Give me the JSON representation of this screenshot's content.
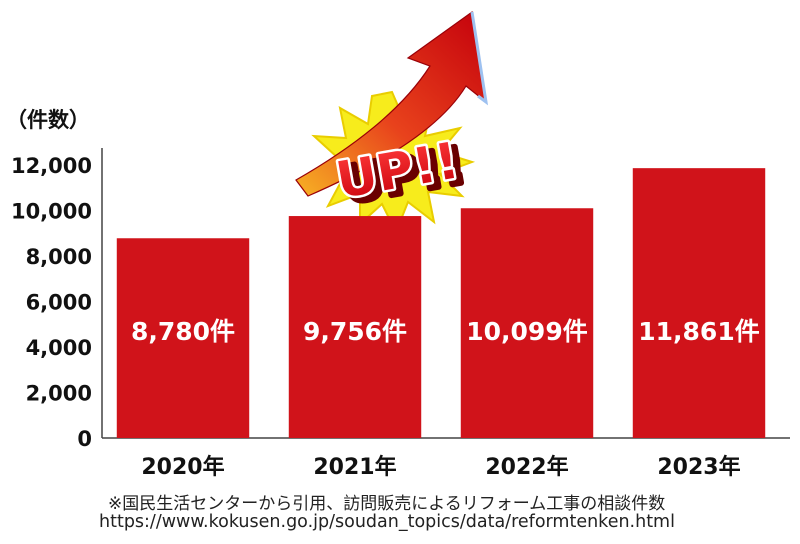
{
  "chart_data": {
    "type": "bar",
    "unit_label": "（件数）",
    "categories": [
      "2020年",
      "2021年",
      "2022年",
      "2023年"
    ],
    "values": [
      8780,
      9756,
      10099,
      11861
    ],
    "data_labels": [
      "8,780件",
      "9,756件",
      "10,099件",
      "11,861件"
    ],
    "y_ticks": [
      "0",
      "2,000",
      "4,000",
      "6,000",
      "8,000",
      "10,000",
      "12,000"
    ],
    "ylim": [
      0,
      12000
    ],
    "annotation": "UP!!",
    "grid": false,
    "bar_color": "#d0131a"
  },
  "footer": {
    "note": "※国民生活センターから引用、訪問販売によるリフォーム工事の相談件数",
    "url": "https://www.kokusen.go.jp/soudan_topics/data/reformtenken.html"
  },
  "colors": {
    "burst": "#f5ea1a",
    "burst_stroke": "#e6c800",
    "arrow_top": "#c8000a",
    "arrow_bottom": "#f3a21a",
    "up_text": "#e3101a"
  }
}
